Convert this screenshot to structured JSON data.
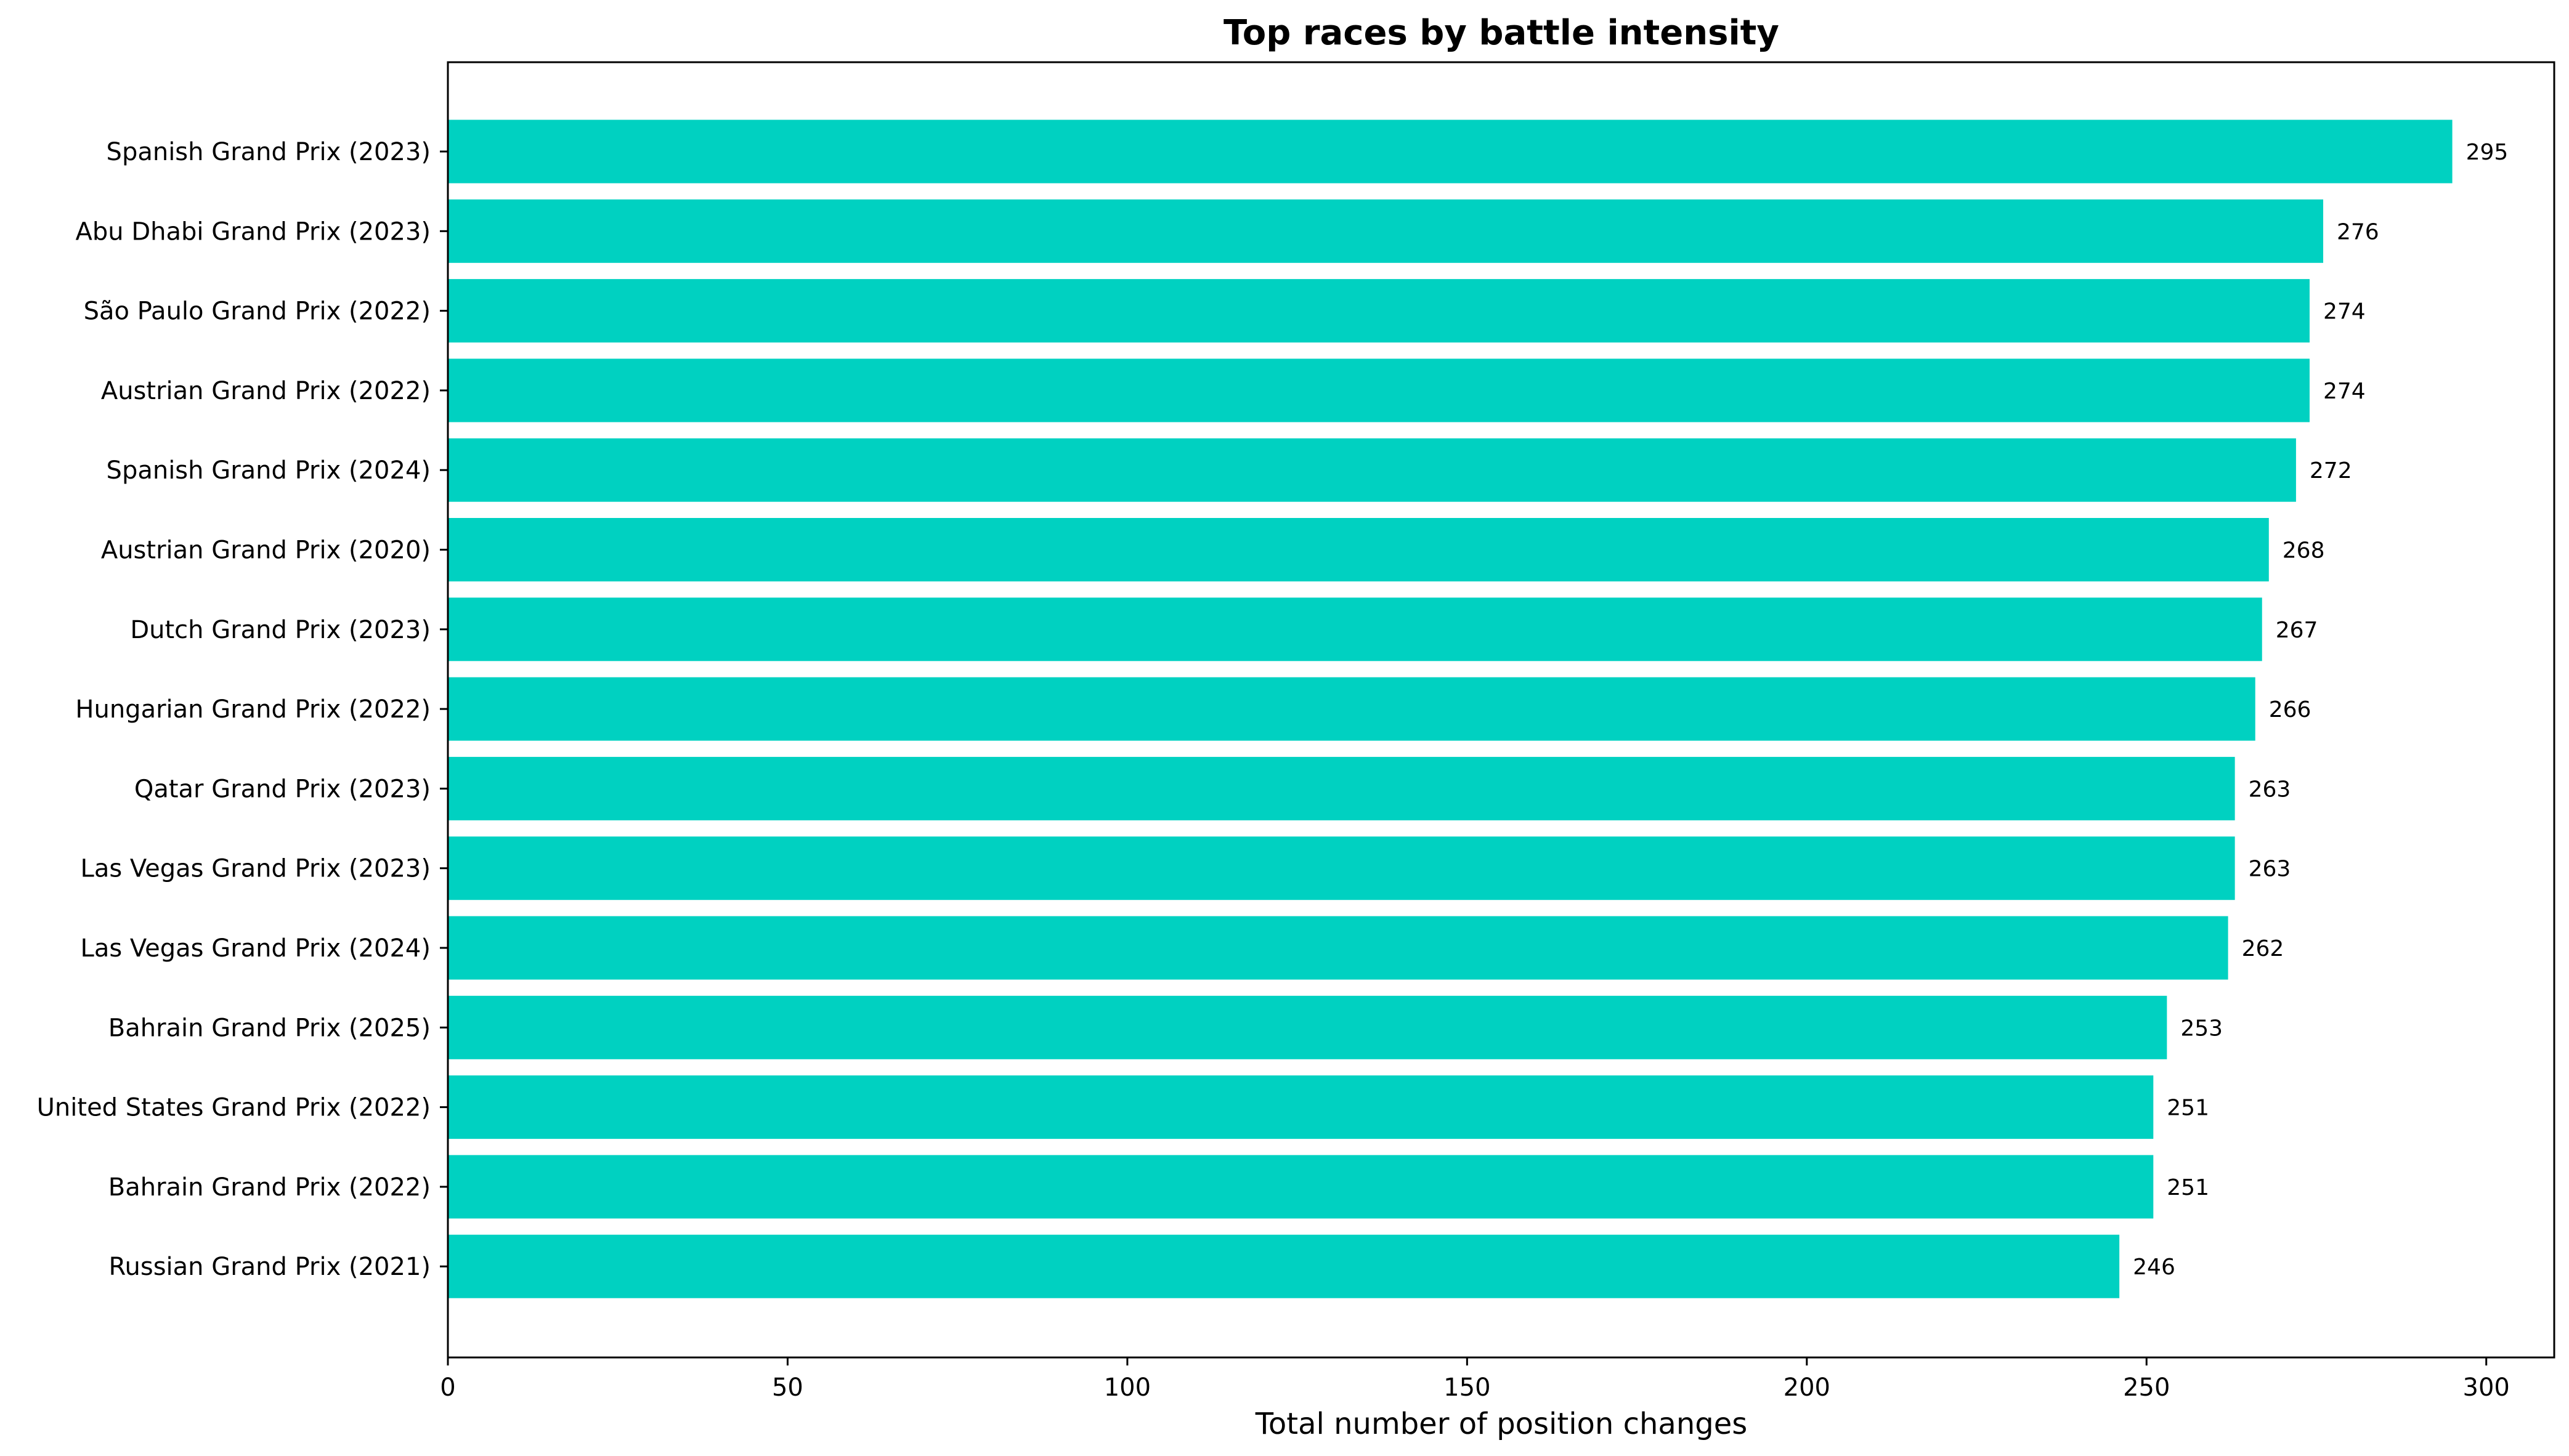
{
  "chart_data": {
    "type": "bar",
    "orientation": "horizontal",
    "title": "Top races by battle intensity",
    "xlabel": "Total number of position changes",
    "ylabel": "",
    "xlim": [
      0,
      310
    ],
    "xticks": [
      0,
      50,
      100,
      150,
      200,
      250,
      300
    ],
    "grid": false,
    "bar_color": "#00d1c1",
    "categories": [
      "Spanish Grand Prix (2023)",
      "Abu Dhabi Grand Prix (2023)",
      "São Paulo Grand Prix (2022)",
      "Austrian Grand Prix (2022)",
      "Spanish Grand Prix (2024)",
      "Austrian Grand Prix (2020)",
      "Dutch Grand Prix (2023)",
      "Hungarian Grand Prix (2022)",
      "Qatar Grand Prix (2023)",
      "Las Vegas Grand Prix (2023)",
      "Las Vegas Grand Prix (2024)",
      "Bahrain Grand Prix (2025)",
      "United States Grand Prix (2022)",
      "Bahrain Grand Prix (2022)",
      "Russian Grand Prix (2021)"
    ],
    "values": [
      295,
      276,
      274,
      274,
      272,
      268,
      267,
      266,
      263,
      263,
      262,
      253,
      251,
      251,
      246
    ]
  }
}
